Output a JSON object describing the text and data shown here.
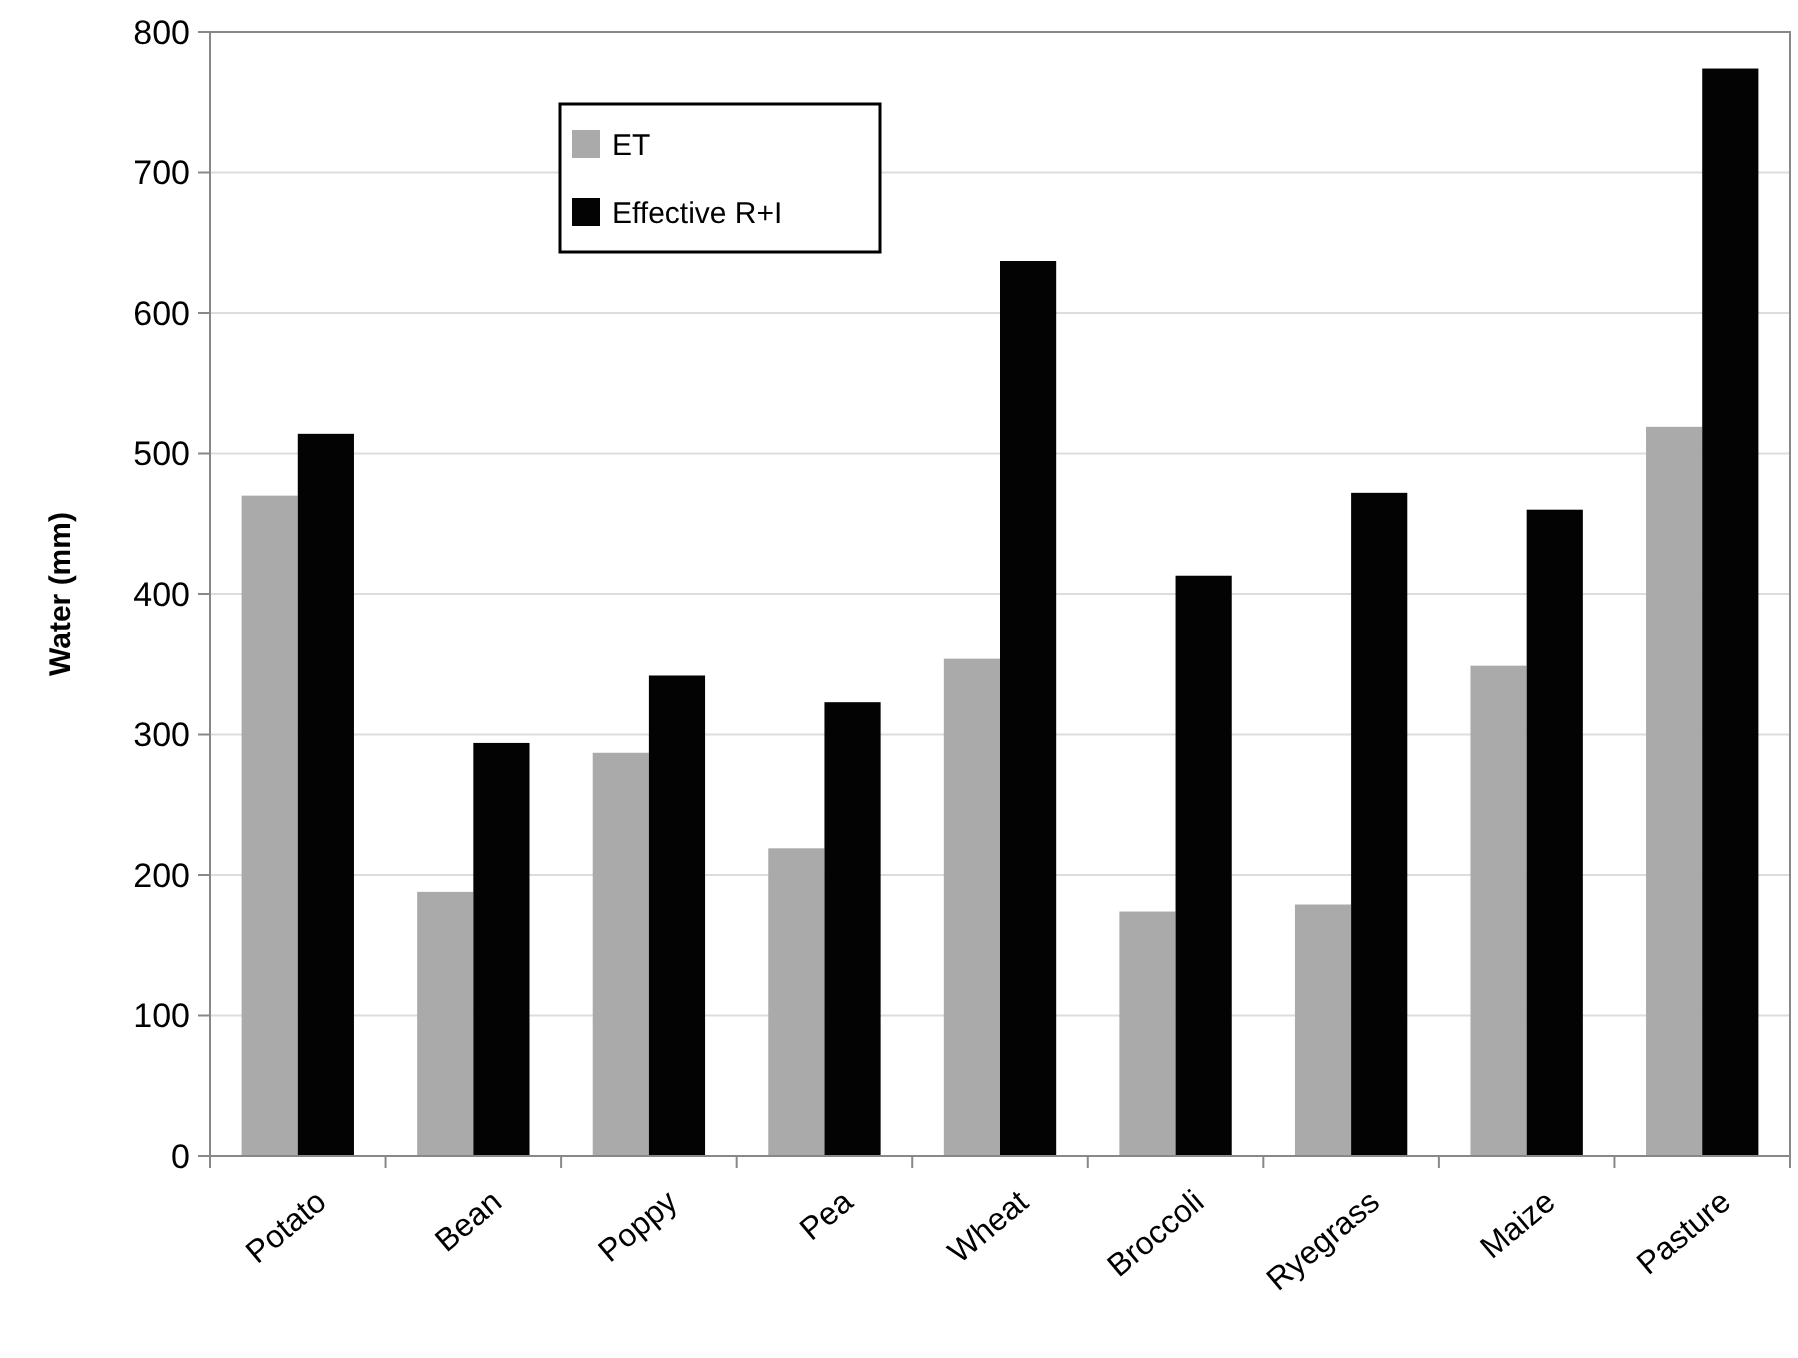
{
  "chart_data": {
    "type": "bar",
    "ylabel": "Water (mm)",
    "categories": [
      "Potato",
      "Bean",
      "Poppy",
      "Pea",
      "Wheat",
      "Broccoli",
      "Ryegrass",
      "Maize",
      "Pasture"
    ],
    "series": [
      {
        "name": "ET",
        "color": "#aaaaaa",
        "values": [
          470,
          188,
          287,
          219,
          354,
          174,
          179,
          349,
          519
        ]
      },
      {
        "name": "Effective R+I",
        "color": "#030303",
        "values": [
          514,
          294,
          342,
          323,
          637,
          413,
          472,
          460,
          774
        ]
      }
    ],
    "ylim": [
      0,
      800
    ],
    "yticks": [
      0,
      100,
      200,
      300,
      400,
      500,
      600,
      700,
      800
    ],
    "grid": "y",
    "legend": "top left"
  }
}
